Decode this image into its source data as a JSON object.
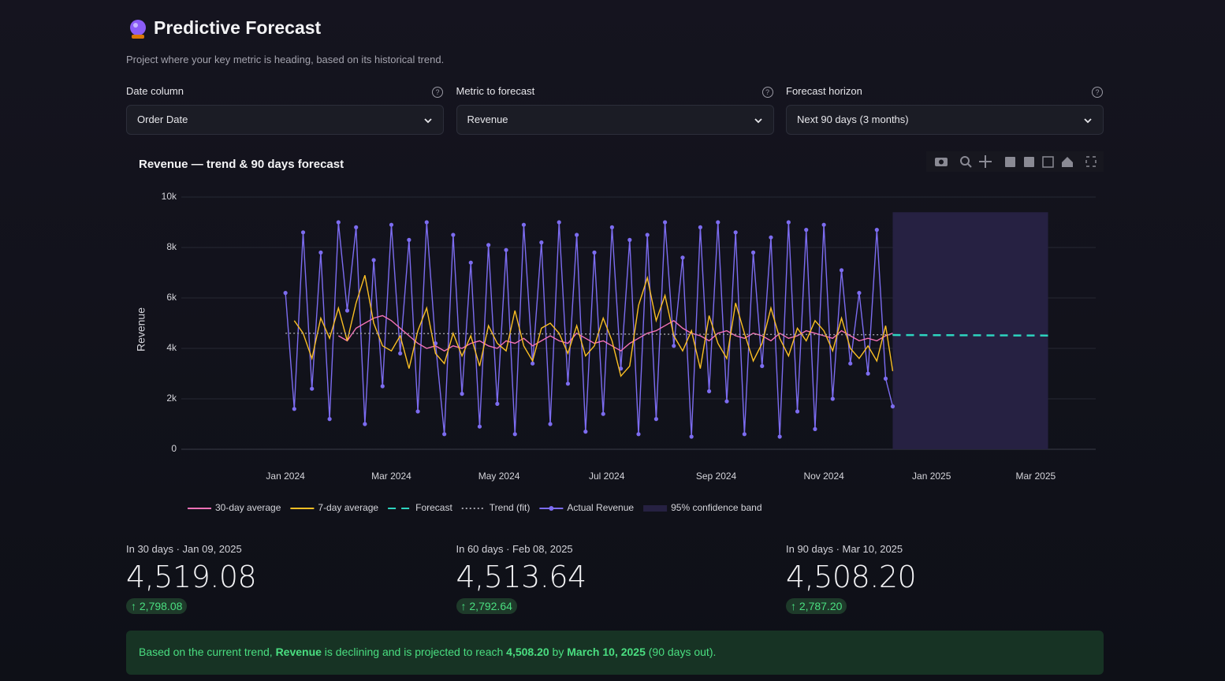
{
  "header": {
    "title": "Predictive Forecast",
    "subtitle": "Project where your key metric is heading, based on its historical trend."
  },
  "controls": [
    {
      "label": "Date column",
      "value": "Order Date"
    },
    {
      "label": "Metric to forecast",
      "value": "Revenue"
    },
    {
      "label": "Forecast horizon",
      "value": "Next 90 days (3 months)"
    }
  ],
  "chart_data": {
    "type": "line",
    "title": "Revenue — trend & 90 days forecast",
    "y_label": "Revenue",
    "xlim": [
      "2023-11-03",
      "2025-04-04"
    ],
    "ylim": [
      0,
      10000
    ],
    "xticks": [
      {
        "value": "2024-01-01",
        "label": "Jan 2024"
      },
      {
        "value": "2024-03-01",
        "label": "Mar 2024"
      },
      {
        "value": "2024-05-01",
        "label": "May 2024"
      },
      {
        "value": "2024-07-01",
        "label": "Jul 2024"
      },
      {
        "value": "2024-09-01",
        "label": "Sep 2024"
      },
      {
        "value": "2024-11-01",
        "label": "Nov 2024"
      },
      {
        "value": "2025-01-01",
        "label": "Jan 2025"
      },
      {
        "value": "2025-03-01",
        "label": "Mar 2025"
      }
    ],
    "yticks": [
      0,
      {
        "value": 2000,
        "label": "2k"
      },
      {
        "value": 4000,
        "label": "4k"
      },
      {
        "value": 6000,
        "label": "6k"
      },
      {
        "value": 8000,
        "label": "8k"
      },
      {
        "value": 10000,
        "label": "10k"
      }
    ],
    "grid": true,
    "legend": "bottom",
    "x": [
      "2024-01-01",
      "2024-01-06",
      "2024-01-11",
      "2024-01-16",
      "2024-01-21",
      "2024-01-26",
      "2024-01-31",
      "2024-02-05",
      "2024-02-10",
      "2024-02-15",
      "2024-02-20",
      "2024-02-25",
      "2024-03-01",
      "2024-03-06",
      "2024-03-11",
      "2024-03-16",
      "2024-03-21",
      "2024-03-26",
      "2024-03-31",
      "2024-04-05",
      "2024-04-10",
      "2024-04-15",
      "2024-04-20",
      "2024-04-25",
      "2024-04-30",
      "2024-05-05",
      "2024-05-10",
      "2024-05-15",
      "2024-05-20",
      "2024-05-25",
      "2024-05-30",
      "2024-06-04",
      "2024-06-09",
      "2024-06-14",
      "2024-06-19",
      "2024-06-24",
      "2024-06-29",
      "2024-07-04",
      "2024-07-09",
      "2024-07-14",
      "2024-07-19",
      "2024-07-24",
      "2024-07-29",
      "2024-08-03",
      "2024-08-08",
      "2024-08-13",
      "2024-08-18",
      "2024-08-23",
      "2024-08-28",
      "2024-09-02",
      "2024-09-07",
      "2024-09-12",
      "2024-09-17",
      "2024-09-22",
      "2024-09-27",
      "2024-10-02",
      "2024-10-07",
      "2024-10-12",
      "2024-10-17",
      "2024-10-22",
      "2024-10-27",
      "2024-11-01",
      "2024-11-06",
      "2024-11-11",
      "2024-11-16",
      "2024-11-21",
      "2024-11-26",
      "2024-12-01",
      "2024-12-06",
      "2024-12-10"
    ],
    "series": [
      {
        "name": "30-day average",
        "color": "#f472b6",
        "values": [
          null,
          null,
          null,
          null,
          null,
          null,
          4500,
          4300,
          4800,
          5000,
          5200,
          5300,
          5100,
          4800,
          4500,
          4200,
          4000,
          4100,
          3900,
          4100,
          4000,
          4200,
          4300,
          4100,
          4000,
          4300,
          4200,
          4400,
          4100,
          4300,
          4500,
          4300,
          4200,
          4600,
          4400,
          4200,
          4300,
          4100,
          3900,
          4200,
          4400,
          4600,
          4700,
          4900,
          5100,
          4800,
          4600,
          4500,
          4300,
          4600,
          4700,
          4500,
          4400,
          4600,
          4500,
          4300,
          4600,
          4400,
          4500,
          4700,
          4600,
          4500,
          4400,
          4700,
          4500,
          4300,
          4400,
          4300,
          4500,
          4600
        ]
      },
      {
        "name": "7-day average",
        "color": "#fbbf24",
        "values": [
          null,
          5100,
          4600,
          3600,
          5200,
          4400,
          5600,
          4300,
          5800,
          6900,
          5000,
          4100,
          3900,
          4500,
          3200,
          4700,
          5600,
          3800,
          3400,
          4600,
          3700,
          4500,
          3300,
          4900,
          4200,
          3900,
          5500,
          4100,
          3500,
          4800,
          5000,
          4600,
          3800,
          4900,
          3700,
          4100,
          5200,
          4300,
          2900,
          3300,
          5700,
          6800,
          5100,
          6100,
          4500,
          3900,
          4700,
          3200,
          5300,
          4200,
          3600,
          5800,
          4600,
          3500,
          4200,
          5600,
          4400,
          3700,
          4800,
          4300,
          5100,
          4700,
          3900,
          5200,
          4000,
          3600,
          4100,
          3500,
          4900,
          3100
        ]
      },
      {
        "name": "Forecast",
        "color": "#2dd4bf",
        "dash": "dash",
        "x": [
          "2024-12-10",
          "2025-03-10"
        ],
        "values": [
          4530,
          4508.2
        ]
      },
      {
        "name": "Trend (fit)",
        "color": "#a1a1aa",
        "dash": "dot",
        "x": [
          "2024-01-01",
          "2024-12-10"
        ],
        "values": [
          4600,
          4540
        ]
      },
      {
        "name": "Actual Revenue",
        "color": "#7c6cf0",
        "markers": true,
        "values": [
          6200,
          1600,
          8600,
          2400,
          7800,
          1200,
          9000,
          5500,
          8800,
          1000,
          7500,
          2500,
          8900,
          3800,
          8300,
          1500,
          9000,
          4200,
          600,
          8500,
          2200,
          7400,
          900,
          8100,
          1800,
          7900,
          600,
          8900,
          3400,
          8200,
          1000,
          9000,
          2600,
          8500,
          700,
          7800,
          1400,
          8800,
          3200,
          8300,
          600,
          8500,
          1200,
          9000,
          4100,
          7600,
          500,
          8800,
          2300,
          9000,
          1900,
          8600,
          600,
          7800,
          3300,
          8400,
          500,
          9000,
          1500,
          8700,
          800,
          8900,
          2000,
          7100,
          3400,
          6200,
          3000,
          8700,
          2800,
          1700
        ]
      }
    ],
    "band": {
      "name": "95% confidence band",
      "color": "#262142",
      "x": [
        "2024-12-10",
        "2025-03-08"
      ],
      "lower": [
        0,
        0
      ],
      "upper": [
        9400,
        9400
      ]
    }
  },
  "metrics": [
    {
      "label": "In 30 days · Jan 09, 2025",
      "value": "4,519.08",
      "delta": "2,798.08"
    },
    {
      "label": "In 60 days · Feb 08, 2025",
      "value": "4,513.64",
      "delta": "2,792.64"
    },
    {
      "label": "In 90 days · Mar 10, 2025",
      "value": "4,508.20",
      "delta": "2,787.20"
    }
  ],
  "banner": [
    {
      "text": "Based on the current trend, "
    },
    {
      "text": "Revenue",
      "bold": true
    },
    {
      "text": " is declining and is projected to reach "
    },
    {
      "text": "4,508.20",
      "bold": true
    },
    {
      "text": " by "
    },
    {
      "text": "March 10, 2025",
      "bold": true
    },
    {
      "text": " (90 days out)."
    }
  ]
}
